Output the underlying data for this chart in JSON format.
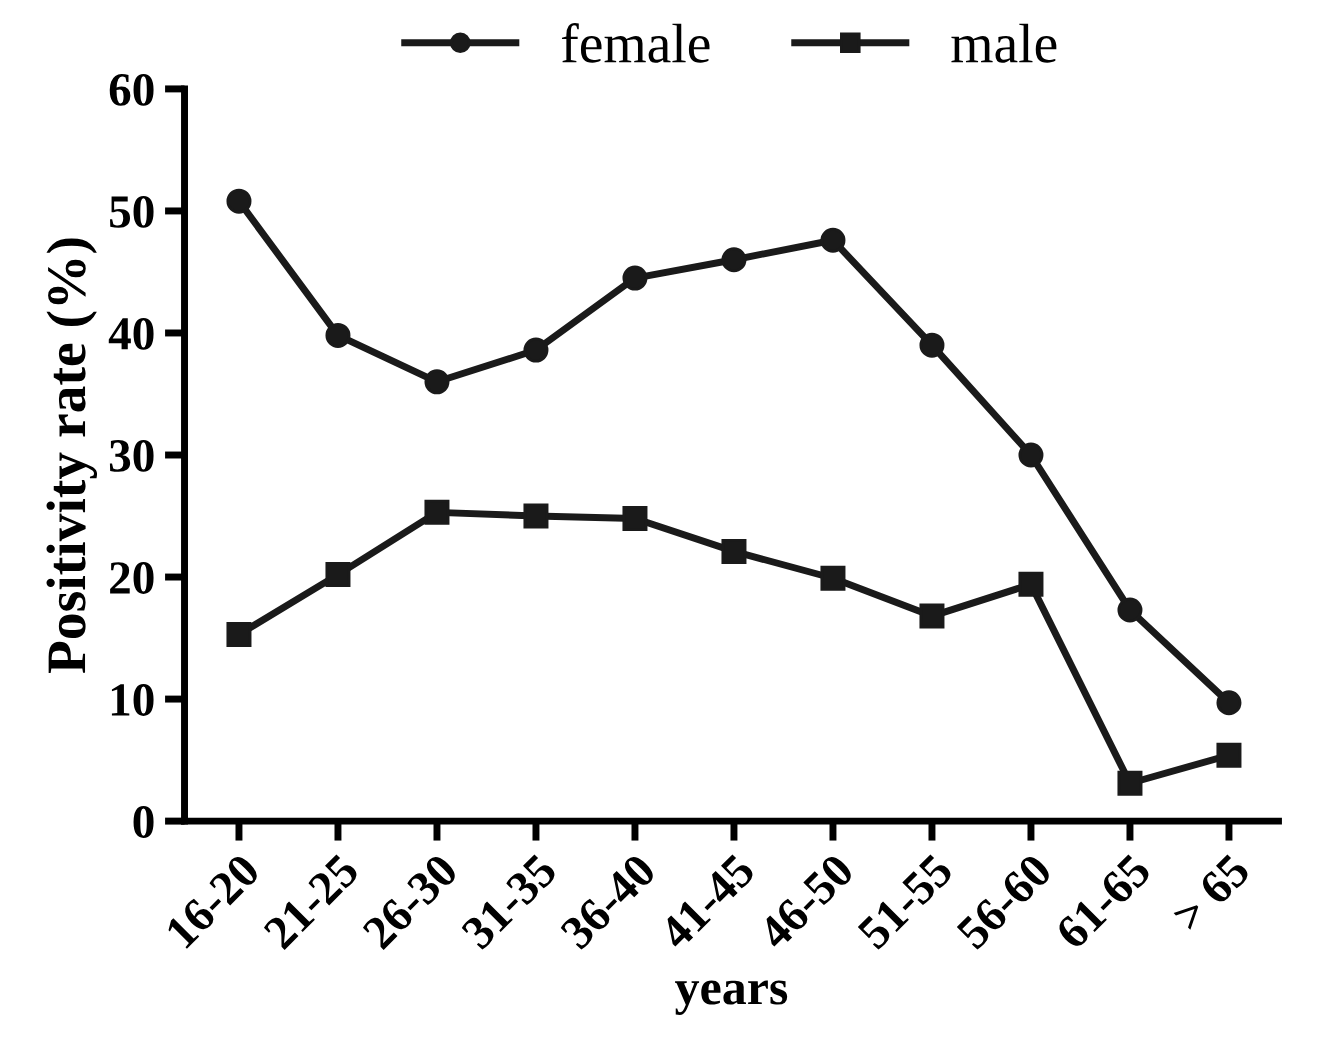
{
  "chart_data": {
    "type": "line",
    "xlabel": "years",
    "ylabel": "Positivity rate (%)",
    "categories": [
      "16-20",
      "21-25",
      "26-30",
      "31-35",
      "36-40",
      "41-45",
      "46-50",
      "51-55",
      "56-60",
      "61-65",
      "> 65"
    ],
    "series": [
      {
        "name": "female",
        "color": "#1a1a1a",
        "marker": "circle",
        "values": [
          50.8,
          39.8,
          36.0,
          38.6,
          44.5,
          46.0,
          47.6,
          39.0,
          30.0,
          17.3,
          9.7
        ]
      },
      {
        "name": "male",
        "color": "#1a1a1a",
        "marker": "square",
        "values": [
          15.3,
          20.2,
          25.3,
          25.0,
          24.8,
          22.1,
          19.9,
          16.8,
          19.4,
          3.1,
          5.4
        ]
      }
    ],
    "ylim": [
      0,
      60
    ],
    "yticks": [
      0,
      10,
      20,
      30,
      40,
      50,
      60
    ],
    "grid": false,
    "legend": "top",
    "line_style": "solid"
  }
}
